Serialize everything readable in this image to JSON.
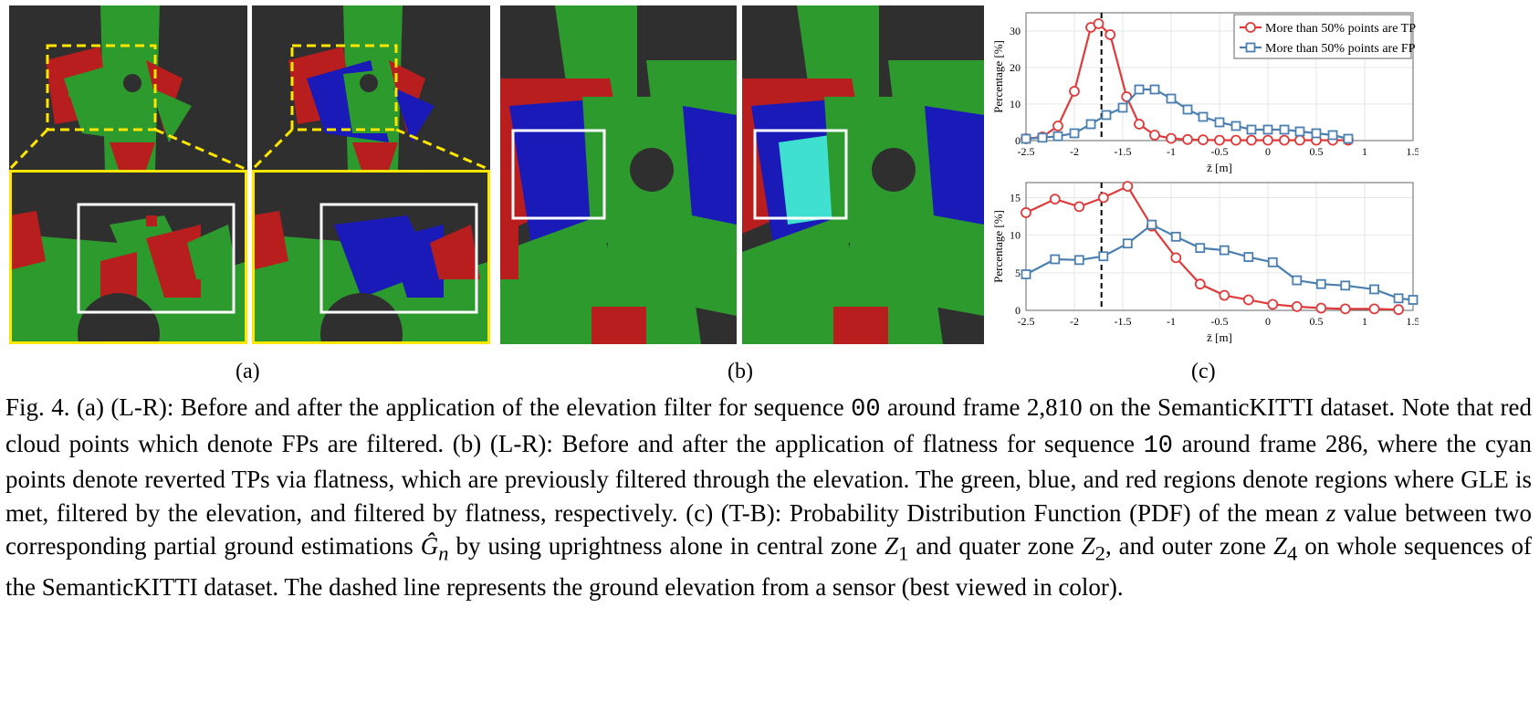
{
  "sub_labels": {
    "a": "(a)",
    "b": "(b)",
    "c": "(c)"
  },
  "caption": {
    "fig": "Fig. 4.",
    "p1": "(a) (L-R): Before and after the application of the elevation filter for sequence",
    "seq1": "00",
    "p2": "around frame 2,810 on the SemanticKITTI dataset. Note that red cloud points which denote FPs are filtered. (b) (L-R): Before and after the application of flatness for sequence",
    "seq2": "10",
    "p3": "around frame 286, where the cyan points denote reverted TPs via flatness, which are previously filtered through the elevation. The green, blue, and red regions denote regions where GLE is met, filtered by the elevation, and filtered by flatness, respectively. (c) (T-B): Probability Distribution Function (PDF) of the mean",
    "zvar": "z",
    "p4": "value between two corresponding partial ground estimations",
    "gvar": "Ĝ",
    "gsub": "n",
    "p5": "by using uprightness alone in central zone",
    "z1": "Z",
    "z1sub": "1",
    "p6": "and quater zone",
    "z2": "Z",
    "z2sub": "2",
    "p7": ", and outer zone",
    "z4": "Z",
    "z4sub": "4",
    "p8": "on whole sequences of the SemanticKITTI dataset. The dashed line represents the ground elevation from a sensor (best viewed in color)."
  },
  "colors": {
    "tp": "#e03a3a",
    "fp": "#4a7fb0",
    "ground": "#2d9a2d",
    "blue": "#1a1ab8",
    "red": "#b81e1e",
    "cyan": "#40e0d0",
    "yellow": "#ffe600",
    "bg": "#2f2f2f"
  },
  "chart_data": [
    {
      "type": "line",
      "xlabel": "z̄ [m]",
      "ylabel": "Percentage [%]",
      "xlim": [
        -2.5,
        1.5
      ],
      "ylim": [
        0,
        35
      ],
      "xticks": [
        "-2.5",
        "-2",
        "-1.5",
        "-1",
        "-0.5",
        "0",
        "0.5",
        "1",
        "1.5"
      ],
      "xtick_values": [
        -2.5,
        -2,
        -1.5,
        -1,
        -0.5,
        0,
        0.5,
        1,
        1.5
      ],
      "yticks": [
        "0",
        "10",
        "20",
        "30"
      ],
      "ytick_values": [
        0,
        10,
        20,
        30
      ],
      "dashed_x": -1.72,
      "legend": {
        "placement": "top-right"
      },
      "series": [
        {
          "name": "More than 50% points are TP",
          "color": "#e03a3a",
          "marker": "circle",
          "x": [
            -2.5,
            -2.33,
            -2.17,
            -2.0,
            -1.83,
            -1.75,
            -1.63,
            -1.46,
            -1.33,
            -1.17,
            -1.0,
            -0.83,
            -0.67,
            -0.5,
            -0.33,
            -0.17,
            0.0,
            0.17,
            0.33,
            0.5,
            0.67,
            0.83
          ],
          "y": [
            0.5,
            1.0,
            4.0,
            13.5,
            31.0,
            32.0,
            29.0,
            12.0,
            4.5,
            1.5,
            0.6,
            0.3,
            0.2,
            0.1,
            0.1,
            0.1,
            0.1,
            0.1,
            0.1,
            0.1,
            0.1,
            0.1
          ]
        },
        {
          "name": "More than 50% points are FP",
          "color": "#4a7fb0",
          "marker": "square",
          "x": [
            -2.5,
            -2.33,
            -2.17,
            -2.0,
            -1.83,
            -1.67,
            -1.5,
            -1.33,
            -1.17,
            -1.0,
            -0.83,
            -0.67,
            -0.5,
            -0.33,
            -0.17,
            0.0,
            0.17,
            0.33,
            0.5,
            0.67,
            0.83
          ],
          "y": [
            0.5,
            0.8,
            1.2,
            2.0,
            4.5,
            7.0,
            9.0,
            14.0,
            14.0,
            11.5,
            8.5,
            6.5,
            5.0,
            4.0,
            3.0,
            3.0,
            3.0,
            2.5,
            2.0,
            1.5,
            0.5
          ]
        }
      ]
    },
    {
      "type": "line",
      "xlabel": "z̄ [m]",
      "ylabel": "Percentage [%]",
      "xlim": [
        -2.5,
        1.5
      ],
      "ylim": [
        0,
        17
      ],
      "xticks": [
        "-2.5",
        "-2",
        "-1.5",
        "-1",
        "-0.5",
        "0",
        "0.5",
        "1",
        "1.5"
      ],
      "xtick_values": [
        -2.5,
        -2,
        -1.5,
        -1,
        -0.5,
        0,
        0.5,
        1,
        1.5
      ],
      "yticks": [
        "0",
        "5",
        "10",
        "15"
      ],
      "ytick_values": [
        0,
        5,
        10,
        15
      ],
      "dashed_x": -1.72,
      "series": [
        {
          "name": "TP",
          "color": "#e03a3a",
          "marker": "circle",
          "x": [
            -2.5,
            -2.2,
            -1.95,
            -1.7,
            -1.45,
            -1.2,
            -0.95,
            -0.7,
            -0.45,
            -0.2,
            0.05,
            0.3,
            0.55,
            0.8,
            1.1,
            1.35
          ],
          "y": [
            13.0,
            14.8,
            13.8,
            15.0,
            16.5,
            11.2,
            7.0,
            3.5,
            2.0,
            1.4,
            0.8,
            0.5,
            0.3,
            0.2,
            0.2,
            0.1
          ]
        },
        {
          "name": "FP",
          "color": "#4a7fb0",
          "marker": "square",
          "x": [
            -2.5,
            -2.2,
            -1.95,
            -1.7,
            -1.45,
            -1.2,
            -0.95,
            -0.7,
            -0.45,
            -0.2,
            0.05,
            0.3,
            0.55,
            0.8,
            1.1,
            1.35,
            1.5
          ],
          "y": [
            4.8,
            6.8,
            6.7,
            7.2,
            8.9,
            11.4,
            9.8,
            8.3,
            8.0,
            7.1,
            6.4,
            4.0,
            3.5,
            3.3,
            2.8,
            1.6,
            1.4
          ]
        }
      ]
    }
  ]
}
